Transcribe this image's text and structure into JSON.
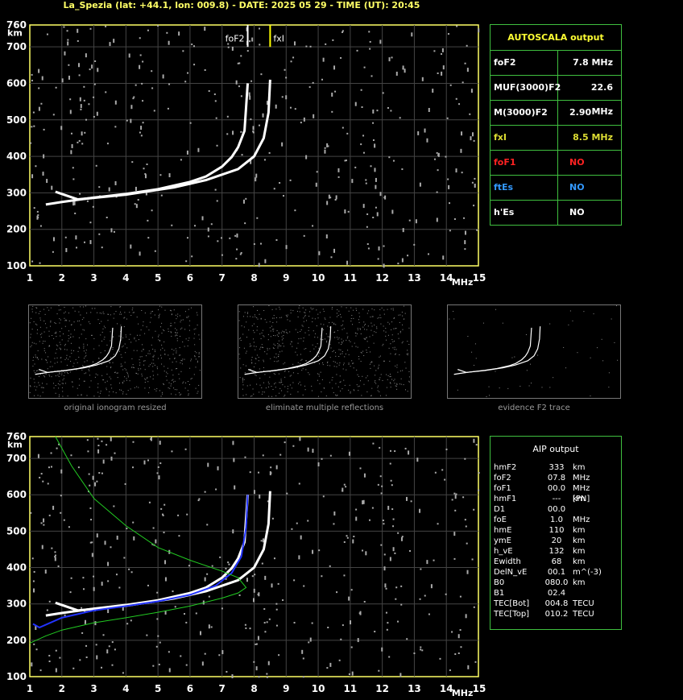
{
  "header": "La_Spezia (lat: +44.1, lon: 009.8) - DATE: 2025 05 29 - TIME (UT): 20:45",
  "chart_data": [
    {
      "type": "scatter",
      "name": "ionogram-autoscala",
      "xlabel": "MHz",
      "ylabel": "km",
      "xlim": [
        1,
        15
      ],
      "ylim": [
        100,
        760
      ],
      "x_ticks": [
        1,
        2,
        3,
        4,
        5,
        6,
        7,
        8,
        9,
        10,
        11,
        12,
        13,
        14,
        15
      ],
      "y_ticks": [
        100,
        200,
        300,
        400,
        500,
        600,
        700,
        760
      ],
      "grid": true,
      "markers": [
        {
          "label": "foF2",
          "x": 7.8,
          "color": "#ffffff"
        },
        {
          "label": "fxI",
          "x": 8.5,
          "color": "#ffff00"
        }
      ],
      "traces": [
        {
          "color": "#ffffff",
          "points": [
            [
              1.5,
              268
            ],
            [
              2,
              275
            ],
            [
              3,
              287
            ],
            [
              4,
              297
            ],
            [
              5,
              310
            ],
            [
              6,
              330
            ],
            [
              6.5,
              345
            ],
            [
              7,
              372
            ],
            [
              7.3,
              398
            ],
            [
              7.5,
              425
            ],
            [
              7.7,
              470
            ],
            [
              7.8,
              600
            ]
          ]
        },
        {
          "color": "#ffffff",
          "points": [
            [
              1.8,
              303
            ],
            [
              2.5,
              282
            ],
            [
              4,
              295
            ],
            [
              5.5,
              315
            ],
            [
              6.5,
              335
            ],
            [
              7.5,
              365
            ],
            [
              8,
              400
            ],
            [
              8.3,
              450
            ],
            [
              8.45,
              520
            ],
            [
              8.5,
              610
            ]
          ]
        }
      ]
    },
    {
      "type": "line",
      "name": "ionogram-aip",
      "xlabel": "MHz",
      "ylabel": "km",
      "xlim": [
        1,
        15
      ],
      "ylim": [
        100,
        760
      ],
      "x_ticks": [
        1,
        2,
        3,
        4,
        5,
        6,
        7,
        8,
        9,
        10,
        11,
        12,
        13,
        14,
        15
      ],
      "y_ticks": [
        100,
        200,
        300,
        400,
        500,
        600,
        700,
        760
      ],
      "grid": true,
      "traces": [
        {
          "color": "#ffffff",
          "points": [
            [
              1.5,
              268
            ],
            [
              2,
              275
            ],
            [
              3,
              287
            ],
            [
              4,
              297
            ],
            [
              5,
              310
            ],
            [
              6,
              330
            ],
            [
              6.5,
              345
            ],
            [
              7,
              372
            ],
            [
              7.3,
              398
            ],
            [
              7.5,
              425
            ],
            [
              7.7,
              470
            ],
            [
              7.8,
              600
            ]
          ]
        },
        {
          "color": "#ffffff",
          "points": [
            [
              1.8,
              303
            ],
            [
              2.5,
              282
            ],
            [
              4,
              295
            ],
            [
              5.5,
              315
            ],
            [
              6.5,
              335
            ],
            [
              7.5,
              365
            ],
            [
              8,
              400
            ],
            [
              8.3,
              450
            ],
            [
              8.45,
              520
            ],
            [
              8.5,
              610
            ]
          ]
        },
        {
          "color": "#2233ff",
          "points": [
            [
              1.1,
              245
            ],
            [
              1.3,
              235
            ],
            [
              2,
              262
            ],
            [
              3,
              282
            ],
            [
              4,
              294
            ],
            [
              5,
              307
            ],
            [
              6,
              325
            ],
            [
              6.8,
              350
            ],
            [
              7.3,
              385
            ],
            [
              7.6,
              430
            ],
            [
              7.75,
              510
            ],
            [
              7.8,
              600
            ]
          ]
        },
        {
          "color": "#22cc22",
          "points": [
            [
              1.0,
              192
            ],
            [
              1.5,
              212
            ],
            [
              2,
              228
            ],
            [
              3,
              248
            ],
            [
              4,
              262
            ],
            [
              5,
              277
            ],
            [
              6,
              294
            ],
            [
              7,
              316
            ],
            [
              7.5,
              330
            ],
            [
              7.75,
              345
            ],
            [
              7.5,
              372
            ],
            [
              7,
              390
            ],
            [
              6,
              420
            ],
            [
              5,
              455
            ],
            [
              4,
              515
            ],
            [
              3,
              590
            ],
            [
              2.3,
              680
            ],
            [
              1.8,
              760
            ]
          ]
        }
      ]
    }
  ],
  "autoscala": {
    "title": "AUTOSCALA output",
    "rows": [
      {
        "k": "foF2",
        "v": "7.8 MHz",
        "color": "#ffffff"
      },
      {
        "k": "MUF(3000)F2",
        "v": "22.6 MHz",
        "color": "#ffffff"
      },
      {
        "k": "M(3000)F2",
        "v": "2.90",
        "color": "#ffffff"
      },
      {
        "k": "fxI",
        "v": "8.5 MHz",
        "color": "#dddd33"
      },
      {
        "k": "foF1",
        "v": "NO",
        "color": "#ff2222"
      },
      {
        "k": "ftEs",
        "v": "NO",
        "color": "#3399ff"
      },
      {
        "k": "h'Es",
        "v": "NO",
        "color": "#ffffff"
      }
    ]
  },
  "aip": {
    "title": "AIP output",
    "rows": [
      [
        "hmF2",
        "333",
        "km"
      ],
      [
        "foF2",
        "07.8",
        "MHz"
      ],
      [
        "foF1",
        "00.0",
        "MHz  [PN]"
      ],
      [
        "hmF1",
        "---",
        "km"
      ],
      [
        "D1",
        "00.0",
        ""
      ],
      [
        "foE",
        "1.0",
        "MHz"
      ],
      [
        "hmE",
        "110",
        "km"
      ],
      [
        "ymE",
        "20",
        "km"
      ],
      [
        "h_vE",
        "132",
        "km"
      ],
      [
        "Ewidth",
        "68",
        "km"
      ],
      [
        "DelN_vE",
        "00.1",
        "m^(-3)"
      ],
      [
        "B0",
        "080.0",
        "km"
      ],
      [
        "B1",
        "02.4",
        ""
      ],
      [
        "TEC[Bot]",
        "004.8",
        "TECU"
      ],
      [
        "TEC[Top]",
        "010.2",
        "TECU"
      ]
    ]
  },
  "thumbnails": [
    {
      "caption": "original ionogram resized"
    },
    {
      "caption": "eliminate multiple reflections"
    },
    {
      "caption": "evidence F2 trace"
    }
  ]
}
